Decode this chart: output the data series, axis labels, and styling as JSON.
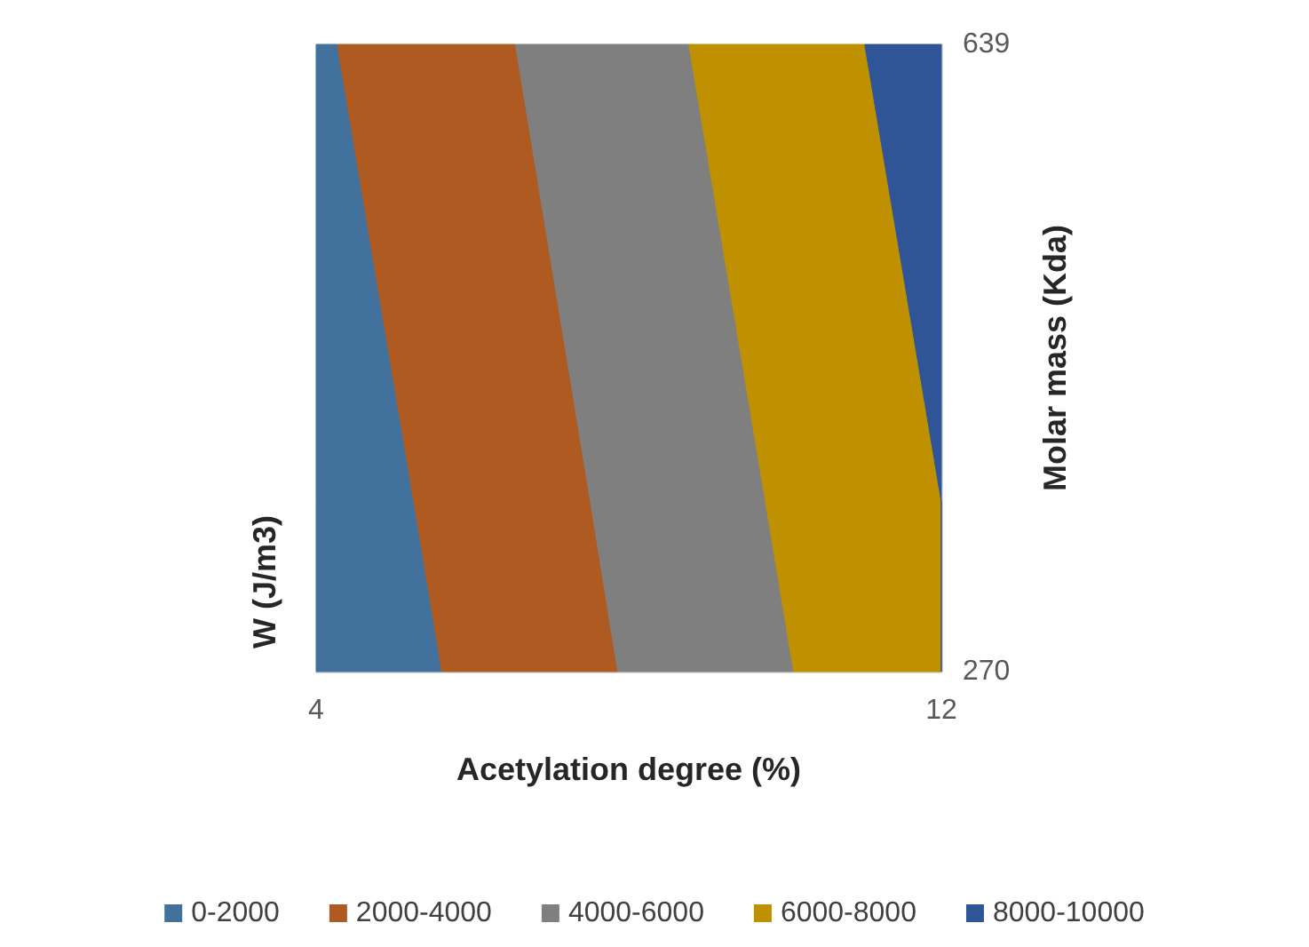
{
  "chart_data": {
    "type": "area",
    "orientation": "horizontal",
    "xlabel": "Acetylation degree (%)",
    "ylabel": "Molar mass (Kda)",
    "annotations": [
      "W (J/m3)"
    ],
    "x": [
      270,
      370,
      639
    ],
    "series": [
      {
        "name": "0-2000",
        "color": "#41719c",
        "values": [
          5.61,
          5.25,
          4.27
        ]
      },
      {
        "name": "2000-4000",
        "color": "#ae5a21",
        "values": [
          7.86,
          7.51,
          6.55
        ]
      },
      {
        "name": "4000-6000",
        "color": "#7f7f7f",
        "values": [
          10.11,
          9.75,
          8.77
        ]
      },
      {
        "name": "6000-8000",
        "color": "#bf9000",
        "values": [
          12,
          12,
          11.02
        ]
      },
      {
        "name": "8000-10000",
        "color": "#2f5597",
        "values": [
          12,
          12,
          12
        ]
      }
    ],
    "xlim": [
      4,
      12
    ],
    "xticks": [
      4,
      12
    ],
    "ylim": [
      270,
      639
    ],
    "yticks": [
      270,
      639
    ],
    "legend": "bottom",
    "grid": false
  }
}
